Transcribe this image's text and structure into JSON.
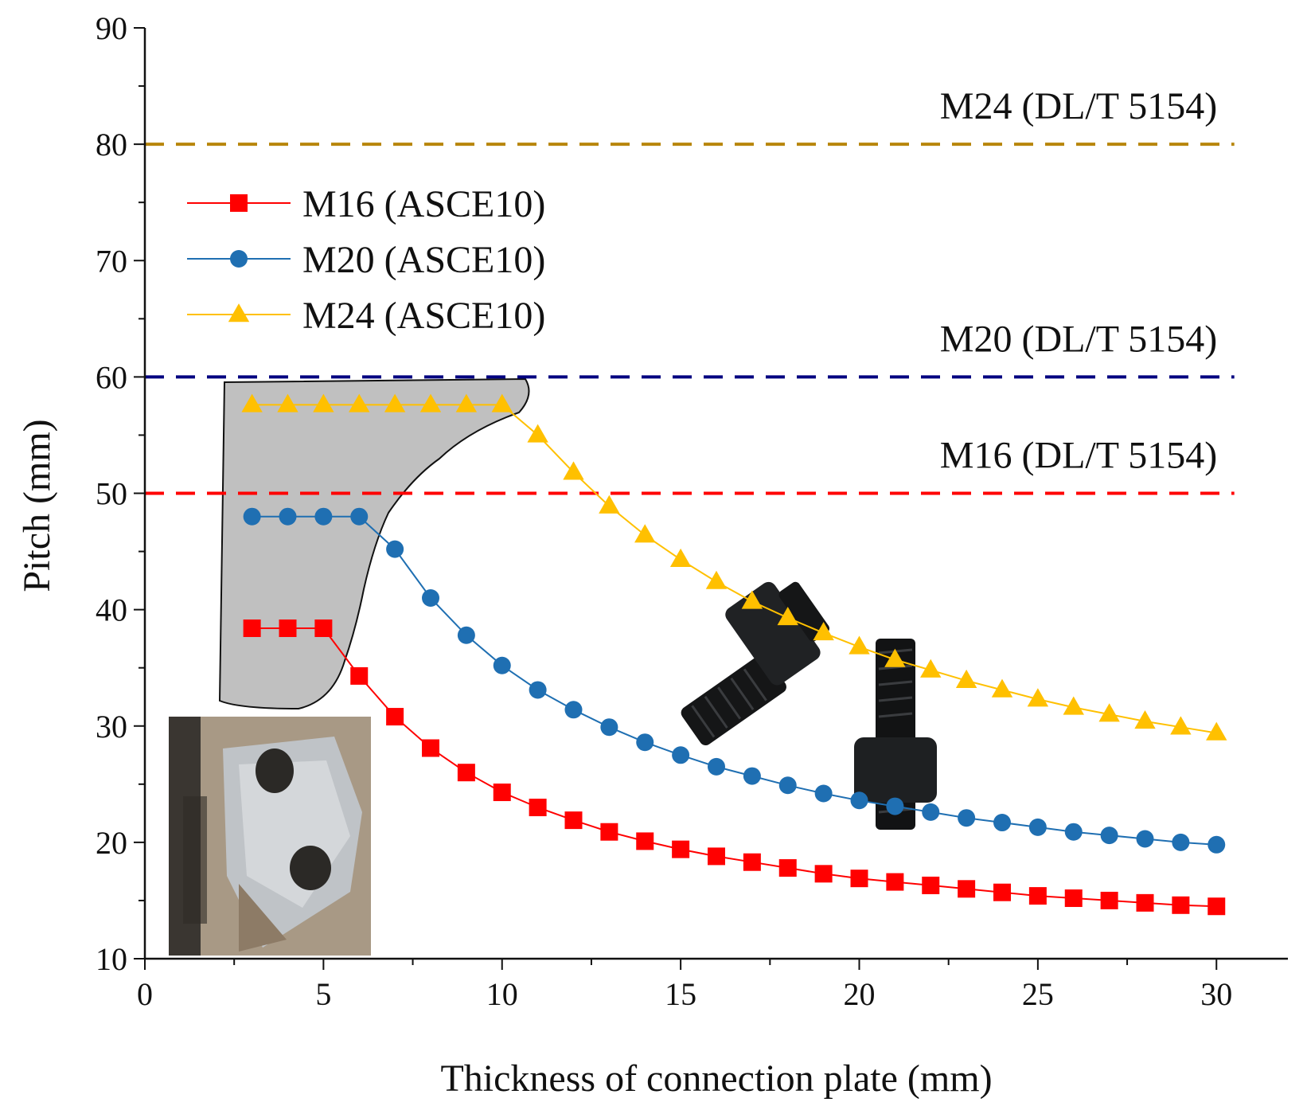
{
  "chart_data": {
    "type": "line",
    "title": "",
    "xlabel": "Thickness of connection plate (mm)",
    "ylabel": "Pitch (mm)",
    "xlim": [
      0,
      32
    ],
    "ylim": [
      10,
      90
    ],
    "xticks": [
      0,
      5,
      10,
      15,
      20,
      25,
      30
    ],
    "yticks": [
      10,
      20,
      30,
      40,
      50,
      60,
      70,
      80,
      90
    ],
    "grid": false,
    "legend_position": "upper-left",
    "x": [
      3,
      4,
      5,
      6,
      7,
      8,
      9,
      10,
      11,
      12,
      13,
      14,
      15,
      16,
      17,
      18,
      19,
      20,
      21,
      22,
      23,
      24,
      25,
      26,
      27,
      28,
      29,
      30
    ],
    "series": [
      {
        "name": "M16 (ASCE10)",
        "color": "#ff0000",
        "marker": "square",
        "values": [
          38.4,
          38.4,
          38.4,
          34.3,
          30.8,
          28.1,
          26.0,
          24.3,
          23.0,
          21.9,
          20.9,
          20.1,
          19.4,
          18.8,
          18.3,
          17.8,
          17.3,
          16.9,
          16.6,
          16.3,
          16.0,
          15.7,
          15.4,
          15.2,
          15.0,
          14.8,
          14.6,
          14.5
        ]
      },
      {
        "name": "M20 (ASCE10)",
        "color": "#1f6fb2",
        "marker": "circle",
        "values": [
          48.0,
          48.0,
          48.0,
          48.0,
          45.2,
          41.0,
          37.8,
          35.2,
          33.1,
          31.4,
          29.9,
          28.6,
          27.5,
          26.5,
          25.7,
          24.9,
          24.2,
          23.6,
          23.1,
          22.6,
          22.1,
          21.7,
          21.3,
          20.9,
          20.6,
          20.3,
          20.0,
          19.8
        ]
      },
      {
        "name": "M24 (ASCE10)",
        "color": "#ffc000",
        "marker": "triangle",
        "values": [
          57.6,
          57.6,
          57.6,
          57.6,
          57.6,
          57.6,
          57.6,
          57.6,
          55.0,
          51.8,
          48.9,
          46.4,
          44.3,
          42.4,
          40.7,
          39.3,
          38.0,
          36.8,
          35.7,
          34.8,
          33.9,
          33.1,
          32.3,
          31.6,
          31.0,
          30.4,
          29.9,
          29.4
        ]
      }
    ],
    "reference_lines": [
      {
        "label": "M24 (DL/T 5154)",
        "y": 80,
        "color": "#b8860b"
      },
      {
        "label": "M20 (DL/T 5154)",
        "y": 60,
        "color": "#000080"
      },
      {
        "label": "M16 (DL/T 5154)",
        "y": 50,
        "color": "#ff0000"
      }
    ]
  }
}
